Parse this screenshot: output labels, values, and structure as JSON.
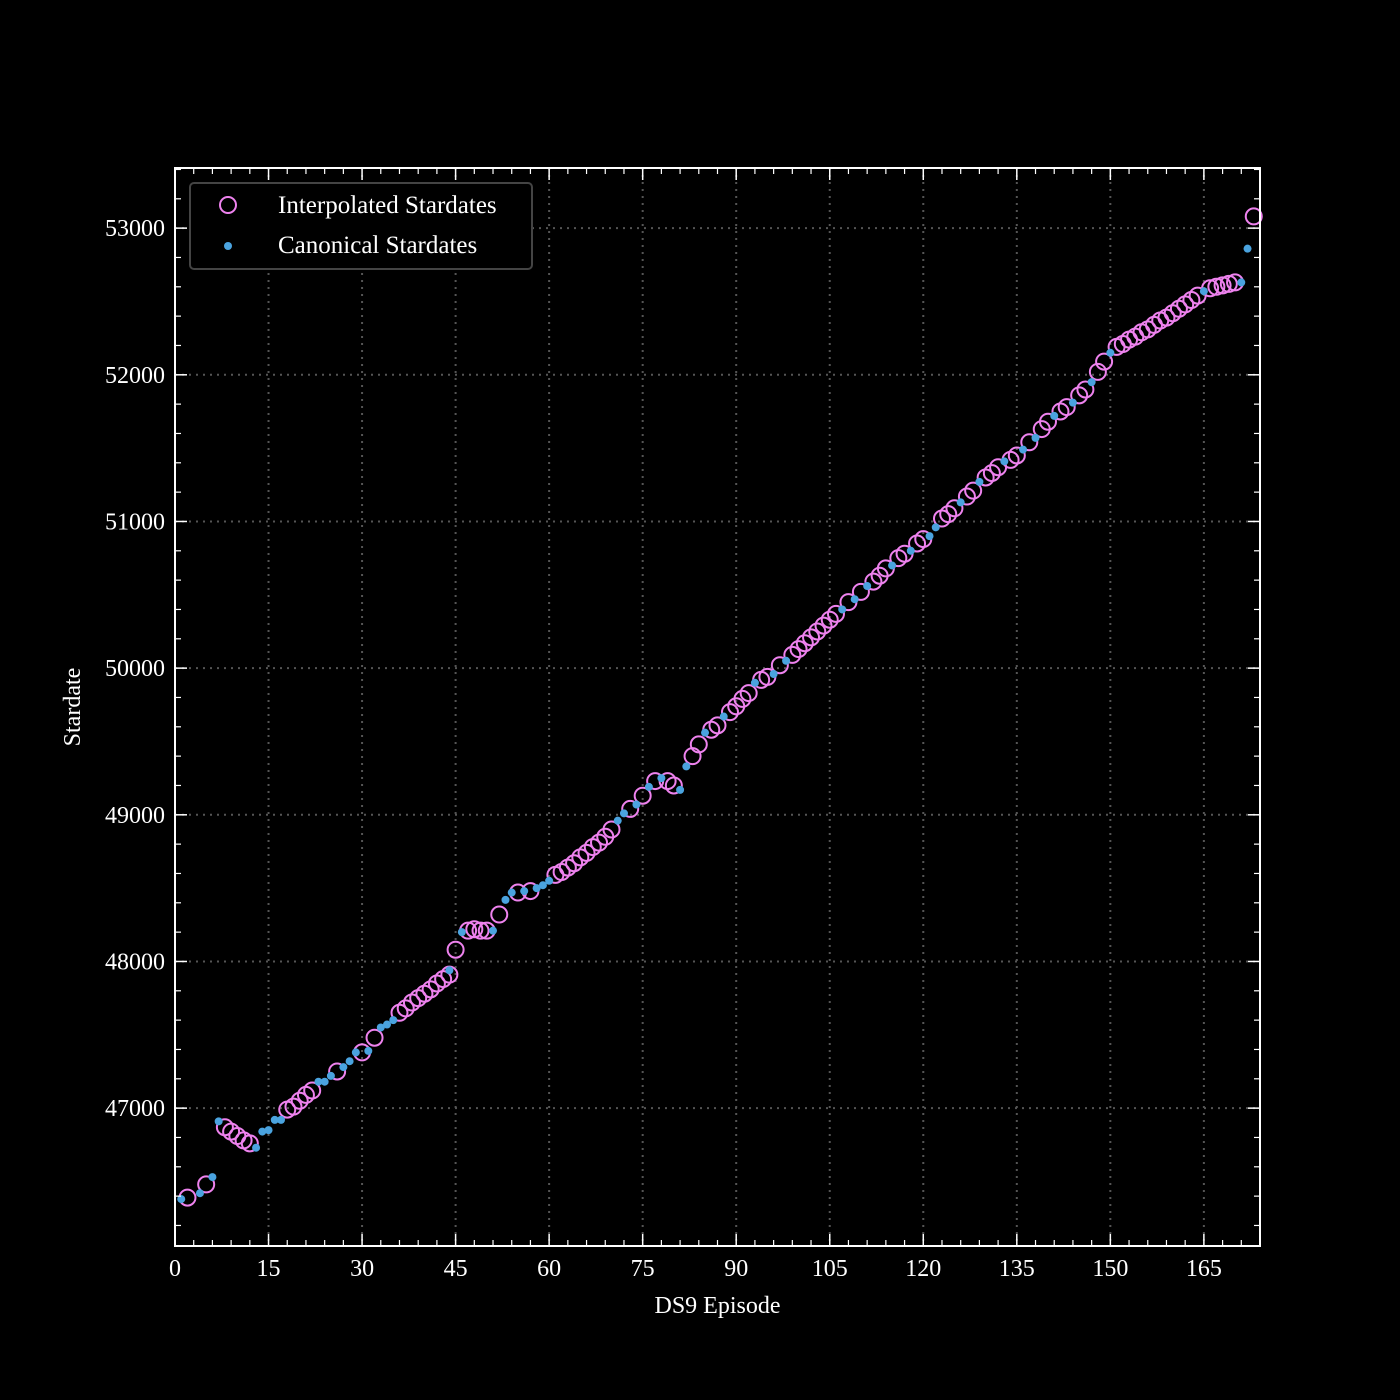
{
  "chart_data": {
    "type": "scatter",
    "xlabel": "DS9 Episode",
    "ylabel": "Stardate",
    "xlim": [
      0,
      174
    ],
    "ylim": [
      46060,
      53410
    ],
    "xticks": [
      0,
      15,
      30,
      45,
      60,
      75,
      90,
      105,
      120,
      135,
      150,
      165
    ],
    "yticks": [
      47000,
      48000,
      49000,
      50000,
      51000,
      52000,
      53000
    ],
    "grid": true,
    "legend_position": "top-left",
    "background": "#000000",
    "series": [
      {
        "name": "Interpolated Stardates",
        "marker": "open-circle",
        "color": "#ee82ee",
        "points": [
          [
            2,
            46390
          ],
          [
            5,
            46480
          ],
          [
            8,
            46870
          ],
          [
            9,
            46840
          ],
          [
            10,
            46810
          ],
          [
            11,
            46780
          ],
          [
            12,
            46760
          ],
          [
            18,
            46990
          ],
          [
            19,
            47010
          ],
          [
            20,
            47050
          ],
          [
            21,
            47090
          ],
          [
            22,
            47120
          ],
          [
            26,
            47250
          ],
          [
            30,
            47380
          ],
          [
            32,
            47480
          ],
          [
            36,
            47650
          ],
          [
            37,
            47680
          ],
          [
            38,
            47720
          ],
          [
            39,
            47750
          ],
          [
            40,
            47780
          ],
          [
            41,
            47810
          ],
          [
            42,
            47850
          ],
          [
            43,
            47880
          ],
          [
            44,
            47910
          ],
          [
            45,
            48080
          ],
          [
            47,
            48210
          ],
          [
            48,
            48220
          ],
          [
            49,
            48210
          ],
          [
            50,
            48210
          ],
          [
            52,
            48320
          ],
          [
            55,
            48470
          ],
          [
            57,
            48480
          ],
          [
            61,
            48590
          ],
          [
            62,
            48610
          ],
          [
            63,
            48640
          ],
          [
            64,
            48670
          ],
          [
            65,
            48710
          ],
          [
            66,
            48740
          ],
          [
            67,
            48780
          ],
          [
            68,
            48810
          ],
          [
            69,
            48850
          ],
          [
            70,
            48900
          ],
          [
            73,
            49040
          ],
          [
            75,
            49130
          ],
          [
            77,
            49230
          ],
          [
            79,
            49230
          ],
          [
            80,
            49200
          ],
          [
            83,
            49400
          ],
          [
            84,
            49480
          ],
          [
            86,
            49580
          ],
          [
            87,
            49610
          ],
          [
            89,
            49700
          ],
          [
            90,
            49740
          ],
          [
            91,
            49790
          ],
          [
            92,
            49830
          ],
          [
            94,
            49920
          ],
          [
            95,
            49940
          ],
          [
            97,
            50020
          ],
          [
            99,
            50090
          ],
          [
            100,
            50130
          ],
          [
            101,
            50170
          ],
          [
            102,
            50210
          ],
          [
            103,
            50250
          ],
          [
            104,
            50290
          ],
          [
            105,
            50330
          ],
          [
            106,
            50370
          ],
          [
            108,
            50450
          ],
          [
            110,
            50520
          ],
          [
            112,
            50590
          ],
          [
            113,
            50630
          ],
          [
            114,
            50680
          ],
          [
            116,
            50750
          ],
          [
            117,
            50780
          ],
          [
            119,
            50850
          ],
          [
            120,
            50880
          ],
          [
            123,
            51020
          ],
          [
            124,
            51050
          ],
          [
            125,
            51090
          ],
          [
            127,
            51170
          ],
          [
            128,
            51210
          ],
          [
            130,
            51300
          ],
          [
            131,
            51330
          ],
          [
            132,
            51370
          ],
          [
            134,
            51420
          ],
          [
            135,
            51450
          ],
          [
            137,
            51540
          ],
          [
            139,
            51630
          ],
          [
            140,
            51680
          ],
          [
            142,
            51750
          ],
          [
            143,
            51780
          ],
          [
            145,
            51860
          ],
          [
            146,
            51900
          ],
          [
            148,
            52020
          ],
          [
            149,
            52090
          ],
          [
            151,
            52190
          ],
          [
            152,
            52210
          ],
          [
            153,
            52240
          ],
          [
            154,
            52260
          ],
          [
            155,
            52290
          ],
          [
            156,
            52310
          ],
          [
            157,
            52340
          ],
          [
            158,
            52370
          ],
          [
            159,
            52390
          ],
          [
            160,
            52420
          ],
          [
            161,
            52450
          ],
          [
            162,
            52480
          ],
          [
            163,
            52510
          ],
          [
            164,
            52540
          ],
          [
            166,
            52590
          ],
          [
            167,
            52600
          ],
          [
            168,
            52610
          ],
          [
            169,
            52620
          ],
          [
            170,
            52630
          ],
          [
            173,
            53080
          ]
        ]
      },
      {
        "name": "Canonical Stardates",
        "marker": "dot",
        "color": "#4aa3df",
        "points": [
          [
            1,
            46380
          ],
          [
            4,
            46420
          ],
          [
            6,
            46530
          ],
          [
            7,
            46910
          ],
          [
            13,
            46730
          ],
          [
            14,
            46840
          ],
          [
            15,
            46850
          ],
          [
            16,
            46920
          ],
          [
            17,
            46920
          ],
          [
            23,
            47180
          ],
          [
            24,
            47180
          ],
          [
            25,
            47220
          ],
          [
            27,
            47280
          ],
          [
            28,
            47320
          ],
          [
            29,
            47380
          ],
          [
            31,
            47390
          ],
          [
            33,
            47550
          ],
          [
            34,
            47570
          ],
          [
            35,
            47600
          ],
          [
            44,
            47940
          ],
          [
            46,
            48200
          ],
          [
            51,
            48210
          ],
          [
            53,
            48420
          ],
          [
            54,
            48470
          ],
          [
            56,
            48480
          ],
          [
            58,
            48500
          ],
          [
            59,
            48520
          ],
          [
            60,
            48550
          ],
          [
            71,
            48960
          ],
          [
            72,
            49010
          ],
          [
            74,
            49070
          ],
          [
            76,
            49190
          ],
          [
            78,
            49250
          ],
          [
            81,
            49170
          ],
          [
            82,
            49330
          ],
          [
            85,
            49560
          ],
          [
            88,
            49670
          ],
          [
            93,
            49900
          ],
          [
            96,
            49960
          ],
          [
            98,
            50050
          ],
          [
            107,
            50400
          ],
          [
            109,
            50470
          ],
          [
            111,
            50560
          ],
          [
            115,
            50700
          ],
          [
            118,
            50800
          ],
          [
            121,
            50900
          ],
          [
            122,
            50960
          ],
          [
            126,
            51130
          ],
          [
            129,
            51270
          ],
          [
            133,
            51410
          ],
          [
            136,
            51490
          ],
          [
            138,
            51570
          ],
          [
            141,
            51720
          ],
          [
            144,
            51810
          ],
          [
            147,
            51950
          ],
          [
            150,
            52150
          ],
          [
            165,
            52570
          ],
          [
            171,
            52630
          ],
          [
            172,
            52860
          ]
        ]
      }
    ]
  }
}
